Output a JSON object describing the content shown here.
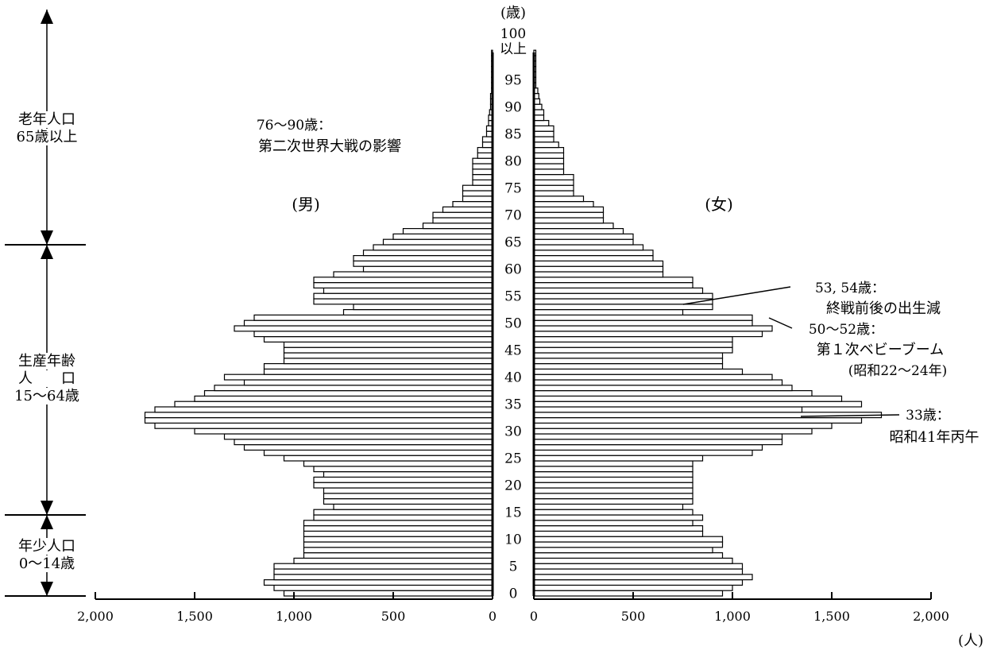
{
  "chart_data": {
    "type": "bar",
    "orientation": "horizontal",
    "age_unit_label": "(歳)",
    "top_age_label": [
      "100",
      "以上"
    ],
    "count_unit_label": "(人)",
    "age_ticks": [
      "0",
      "5",
      "10",
      "15",
      "20",
      "25",
      "30",
      "35",
      "40",
      "45",
      "50",
      "55",
      "60",
      "65",
      "70",
      "75",
      "80",
      "85",
      "90",
      "95"
    ],
    "x_ticks_left": [
      "2,000",
      "1,500",
      "1,000",
      "500",
      "0"
    ],
    "x_ticks_right": [
      "0",
      "500",
      "1,000",
      "1,500",
      "2,000"
    ],
    "xlim": [
      0,
      2000
    ],
    "ages": [
      0,
      1,
      2,
      3,
      4,
      5,
      6,
      7,
      8,
      9,
      10,
      11,
      12,
      13,
      14,
      15,
      16,
      17,
      18,
      19,
      20,
      21,
      22,
      23,
      24,
      25,
      26,
      27,
      28,
      29,
      30,
      31,
      32,
      33,
      34,
      35,
      36,
      37,
      38,
      39,
      40,
      41,
      42,
      43,
      44,
      45,
      46,
      47,
      48,
      49,
      50,
      51,
      52,
      53,
      54,
      55,
      56,
      57,
      58,
      59,
      60,
      61,
      62,
      63,
      64,
      65,
      66,
      67,
      68,
      69,
      70,
      71,
      72,
      73,
      74,
      75,
      76,
      77,
      78,
      79,
      80,
      81,
      82,
      83,
      84,
      85,
      86,
      87,
      88,
      89,
      90,
      91,
      92,
      93,
      94,
      95,
      96,
      97,
      98,
      99,
      100
    ],
    "series": [
      {
        "name": "(男)",
        "side": "left",
        "values": [
          1050,
          1100,
          1150,
          1100,
          1100,
          1100,
          1000,
          950,
          950,
          950,
          950,
          950,
          950,
          950,
          900,
          900,
          800,
          850,
          850,
          850,
          900,
          900,
          850,
          900,
          950,
          1050,
          1150,
          1250,
          1300,
          1350,
          1500,
          1700,
          1750,
          1750,
          1700,
          1600,
          1500,
          1450,
          1400,
          1250,
          1350,
          1150,
          1150,
          1050,
          1050,
          1050,
          1050,
          1150,
          1200,
          1300,
          1250,
          1200,
          750,
          700,
          900,
          900,
          850,
          900,
          900,
          800,
          650,
          700,
          700,
          650,
          600,
          550,
          500,
          450,
          350,
          300,
          300,
          250,
          200,
          150,
          150,
          150,
          100,
          100,
          100,
          100,
          100,
          75,
          75,
          50,
          50,
          30,
          30,
          20,
          20,
          15,
          10,
          10,
          10,
          5,
          5,
          5,
          5,
          5,
          5,
          5,
          5
        ]
      },
      {
        "name": "(女)",
        "side": "right",
        "values": [
          950,
          1000,
          1050,
          1100,
          1050,
          1050,
          1000,
          950,
          900,
          950,
          950,
          850,
          850,
          800,
          850,
          800,
          750,
          800,
          800,
          800,
          800,
          800,
          800,
          800,
          800,
          850,
          1100,
          1150,
          1250,
          1250,
          1400,
          1500,
          1650,
          1750,
          1350,
          1650,
          1550,
          1400,
          1300,
          1250,
          1200,
          1050,
          950,
          950,
          950,
          1000,
          1000,
          1000,
          1150,
          1200,
          1100,
          1100,
          750,
          900,
          900,
          900,
          850,
          800,
          800,
          650,
          650,
          650,
          600,
          600,
          550,
          500,
          500,
          450,
          400,
          350,
          350,
          350,
          300,
          250,
          200,
          200,
          200,
          200,
          150,
          150,
          150,
          150,
          150,
          125,
          100,
          100,
          100,
          75,
          50,
          50,
          40,
          30,
          25,
          20,
          10,
          10,
          10,
          10,
          10,
          10,
          10
        ]
      }
    ],
    "side_labels": {
      "male": "(男)",
      "female": "(女)"
    },
    "age_groups": [
      {
        "lines": [
          "老年人口",
          "65歳以上"
        ]
      },
      {
        "lines": [
          "生産年齢",
          "人　　口",
          "15～64歳"
        ]
      },
      {
        "lines": [
          "年少人口",
          "0～14歳"
        ]
      }
    ],
    "annotations": [
      {
        "lines": [
          "76～90歳：",
          "第二次世界大戦の影響"
        ]
      },
      {
        "lines": [
          "53, 54歳：",
          "終戦前後の出生減"
        ]
      },
      {
        "lines": [
          "50～52歳：",
          "第１次ベビーブーム",
          "(昭和22～24年)"
        ]
      },
      {
        "lines": [
          "33歳：",
          "昭和41年丙午"
        ]
      }
    ]
  }
}
